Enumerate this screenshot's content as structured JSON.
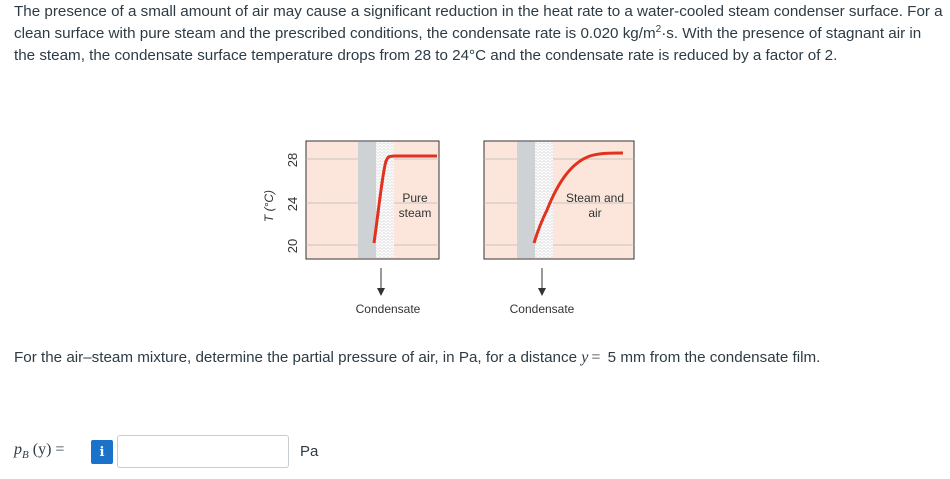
{
  "problem": {
    "part1": "The presence of a small amount of air may cause a significant reduction in the heat rate to a water-cooled steam condenser surface. For a clean surface with pure steam and the prescribed conditions, the condensate rate is 0.020 kg/m",
    "sup": "2",
    "part2": "·s. With the presence of stagnant air in the steam, the condensate surface temperature drops from 28 to 24°C and the condensate rate is reduced by a factor of 2."
  },
  "figure": {
    "y_axis_label": "T (°C)",
    "y_ticks": [
      "28",
      "24",
      "20"
    ],
    "left_panel_label_line1": "Pure",
    "left_panel_label_line2": "steam",
    "right_panel_label_line1": "Steam and",
    "right_panel_label_line2": "air",
    "left_caption": "Condensate",
    "right_caption": "Condensate",
    "colors": {
      "panel_bg": "#fce6dc",
      "wall": "#cfd2d4",
      "curve": "#e0321e"
    }
  },
  "question": {
    "text": "For the air–steam mixture, determine the partial pressure of air, in Pa, for a distance",
    "var": "y",
    "eq": "=",
    "value": "5 mm from the condensate film."
  },
  "answer": {
    "label_p": "p",
    "label_sub": "B",
    "label_rest": "(y) =",
    "info_icon": "i",
    "input_value": "",
    "unit": "Pa"
  }
}
